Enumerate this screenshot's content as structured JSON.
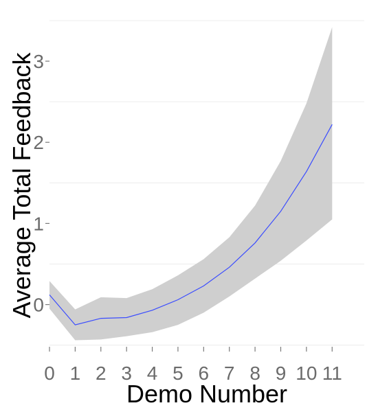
{
  "chart_data": {
    "type": "line",
    "title": "",
    "xlabel": "Demo Number",
    "ylabel": "Average Total Feedback",
    "x": [
      0,
      1,
      2,
      3,
      4,
      5,
      6,
      7,
      8,
      9,
      10,
      11
    ],
    "series": [
      {
        "values": [
          0.12,
          -0.25,
          -0.17,
          -0.16,
          -0.07,
          0.06,
          0.23,
          0.46,
          0.76,
          1.15,
          1.64,
          2.22
        ],
        "band_upper": [
          0.29,
          -0.06,
          0.09,
          0.08,
          0.19,
          0.36,
          0.56,
          0.83,
          1.22,
          1.77,
          2.48,
          3.42
        ],
        "band_lower": [
          -0.05,
          -0.44,
          -0.43,
          -0.39,
          -0.34,
          -0.25,
          -0.1,
          0.1,
          0.32,
          0.54,
          0.79,
          1.05
        ]
      }
    ],
    "x_ticks": [
      "0",
      "1",
      "2",
      "3",
      "4",
      "5",
      "6",
      "7",
      "8",
      "9",
      "10",
      "11"
    ],
    "y_ticks": [
      "0",
      "1",
      "2",
      "3"
    ],
    "xlim": [
      0,
      12.25
    ],
    "ylim": [
      -0.52,
      3.5
    ],
    "grid": true,
    "legend": "none",
    "colors": {
      "line": "#3a4cff",
      "band": "#cfcfcf",
      "grid": "#ececec",
      "tick": "#7a7a7a",
      "tick_label": "#6b6b6b",
      "axis_title": "#000000"
    }
  }
}
